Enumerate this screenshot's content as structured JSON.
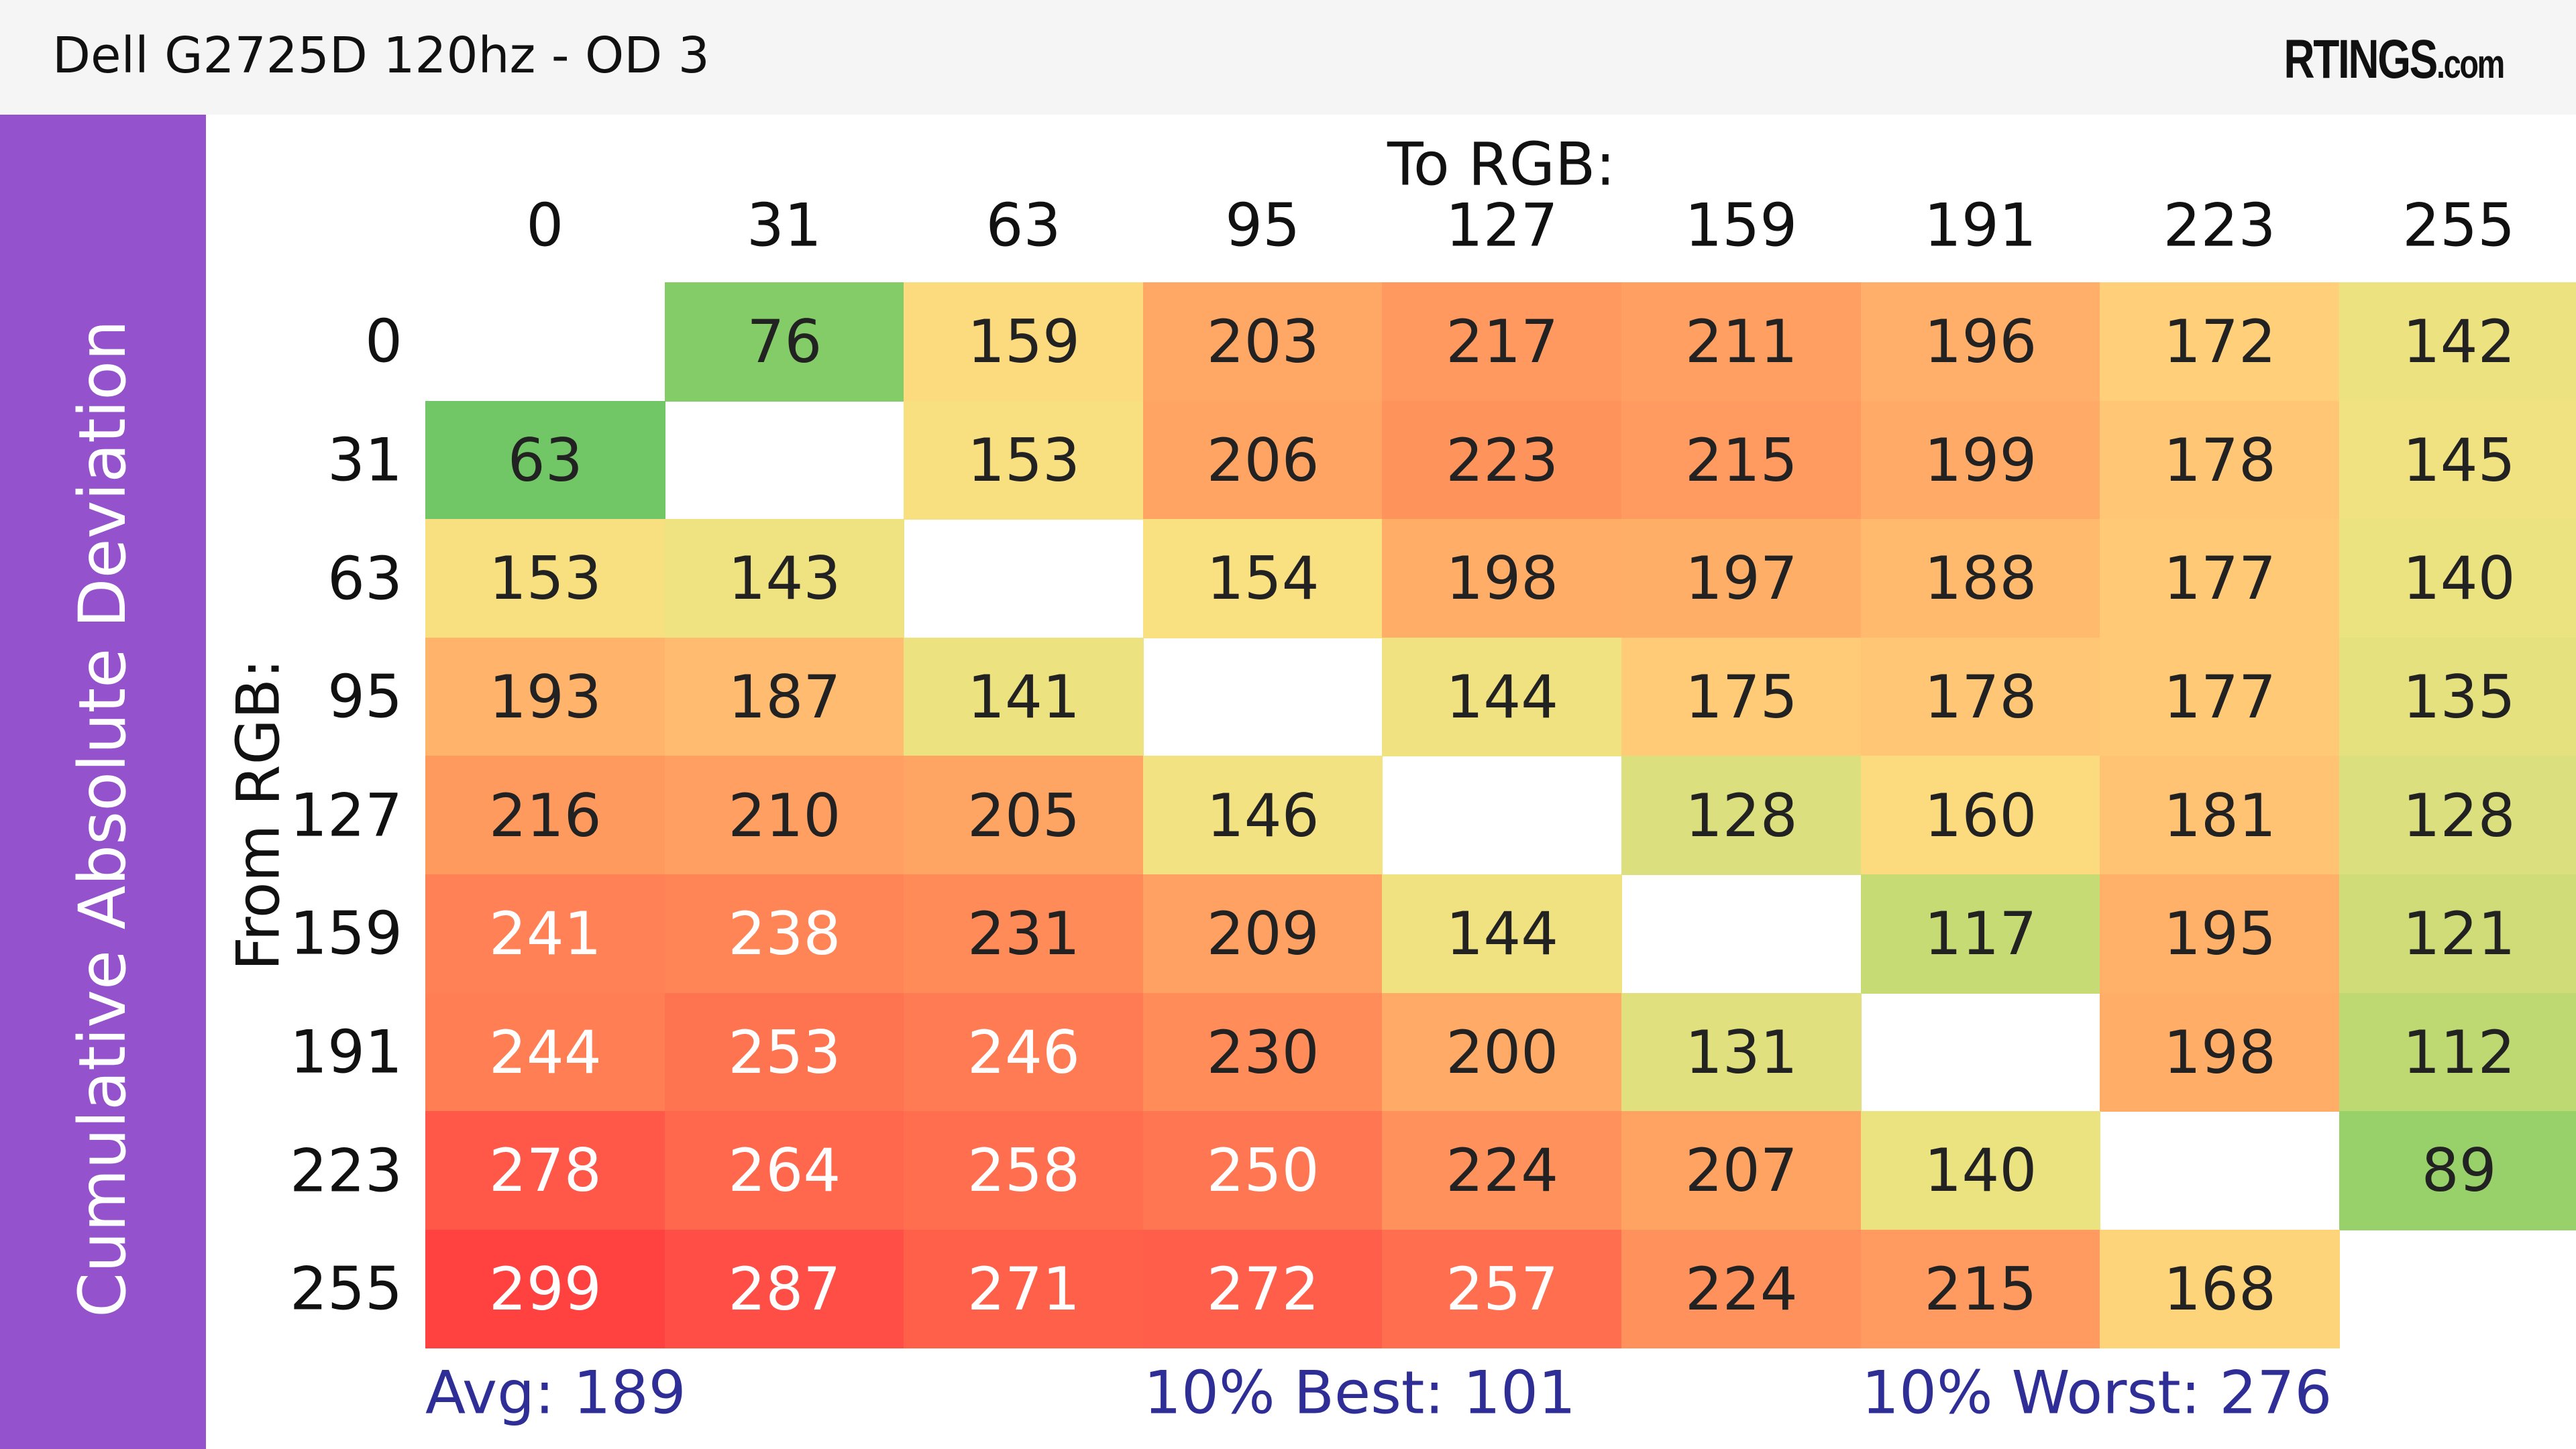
{
  "header": {
    "title": "Dell G2725D 120hz - OD 3",
    "logo_main": "RTINGS",
    "logo_suffix": ".com"
  },
  "sidebar": {
    "label": "Cumulative Absolute Deviation"
  },
  "chart_data": {
    "type": "heatmap",
    "title": "Dell G2725D 120hz - OD 3",
    "ylabel_outer": "Cumulative Absolute Deviation",
    "xlabel": "To RGB:",
    "ylabel": "From RGB:",
    "x_categories": [
      "0",
      "31",
      "63",
      "95",
      "127",
      "159",
      "191",
      "223",
      "255"
    ],
    "y_categories": [
      "0",
      "31",
      "63",
      "95",
      "127",
      "159",
      "191",
      "223",
      "255"
    ],
    "values": [
      [
        null,
        76,
        159,
        203,
        217,
        211,
        196,
        172,
        142
      ],
      [
        63,
        null,
        153,
        206,
        223,
        215,
        199,
        178,
        145
      ],
      [
        153,
        143,
        null,
        154,
        198,
        197,
        188,
        177,
        140
      ],
      [
        193,
        187,
        141,
        null,
        144,
        175,
        178,
        177,
        135
      ],
      [
        216,
        210,
        205,
        146,
        null,
        128,
        160,
        181,
        128
      ],
      [
        241,
        238,
        231,
        209,
        144,
        null,
        117,
        195,
        121
      ],
      [
        244,
        253,
        246,
        230,
        200,
        131,
        null,
        198,
        112
      ],
      [
        278,
        264,
        258,
        250,
        224,
        207,
        140,
        null,
        89
      ],
      [
        299,
        287,
        271,
        272,
        257,
        224,
        215,
        168,
        null
      ]
    ],
    "color_scale": [
      {
        "v": 60,
        "c": "#6cc665"
      },
      {
        "v": 100,
        "c": "#a8d46a"
      },
      {
        "v": 130,
        "c": "#dfe07e"
      },
      {
        "v": 150,
        "c": "#f7e382"
      },
      {
        "v": 170,
        "c": "#ffd27a"
      },
      {
        "v": 200,
        "c": "#ffaa66"
      },
      {
        "v": 240,
        "c": "#ff8255"
      },
      {
        "v": 300,
        "c": "#ff4040"
      }
    ],
    "light_text_threshold": 235,
    "summary": {
      "avg": "Avg: 189",
      "best": "10% Best: 101",
      "worst": "10% Worst: 276"
    }
  }
}
